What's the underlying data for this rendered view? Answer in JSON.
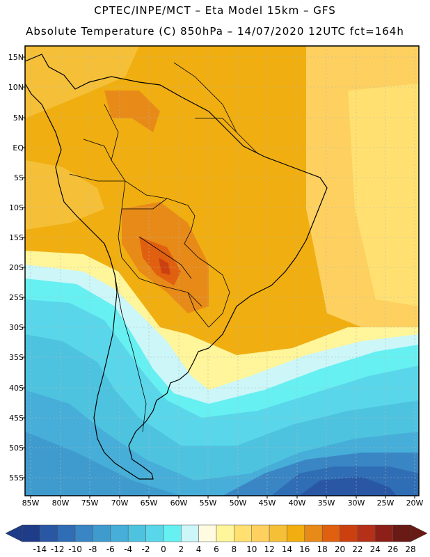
{
  "header": {
    "line1": "CPTEC/INPE/MCT –  Eta Model 15km – GFS",
    "line2": "Absolute Temperature (C) 850hPa – 14/07/2020 12UTC fct=164h"
  },
  "map": {
    "region": "South America",
    "lat_labels": [
      "15N",
      "10N",
      "5N",
      "EQ",
      "5S",
      "10S",
      "15S",
      "20S",
      "25S",
      "30S",
      "35S",
      "40S",
      "45S",
      "50S",
      "55S"
    ],
    "lon_labels": [
      "85W",
      "80W",
      "75W",
      "70W",
      "65W",
      "60W",
      "55W",
      "50W",
      "45W",
      "40W",
      "35W",
      "30W",
      "25W",
      "20W"
    ]
  },
  "colorbar": {
    "labels": [
      "-14",
      "-12",
      "-10",
      "-8",
      "-6",
      "-4",
      "-2",
      "0",
      "2",
      "4",
      "6",
      "8",
      "10",
      "12",
      "14",
      "16",
      "18",
      "20",
      "22",
      "24",
      "26",
      "28"
    ],
    "colors": [
      "#1f3c88",
      "#2a57a4",
      "#2f6db4",
      "#3a86c4",
      "#3f9bce",
      "#46aed8",
      "#4ec3e0",
      "#5ad6ea",
      "#66f0f2",
      "#ccf6f8",
      "#fffae0",
      "#fff59a",
      "#ffe070",
      "#fdd060",
      "#f5c038",
      "#f0ae10",
      "#e88a18",
      "#e06010",
      "#cc4010",
      "#b43018",
      "#8c2018",
      "#6a1a14"
    ]
  }
}
